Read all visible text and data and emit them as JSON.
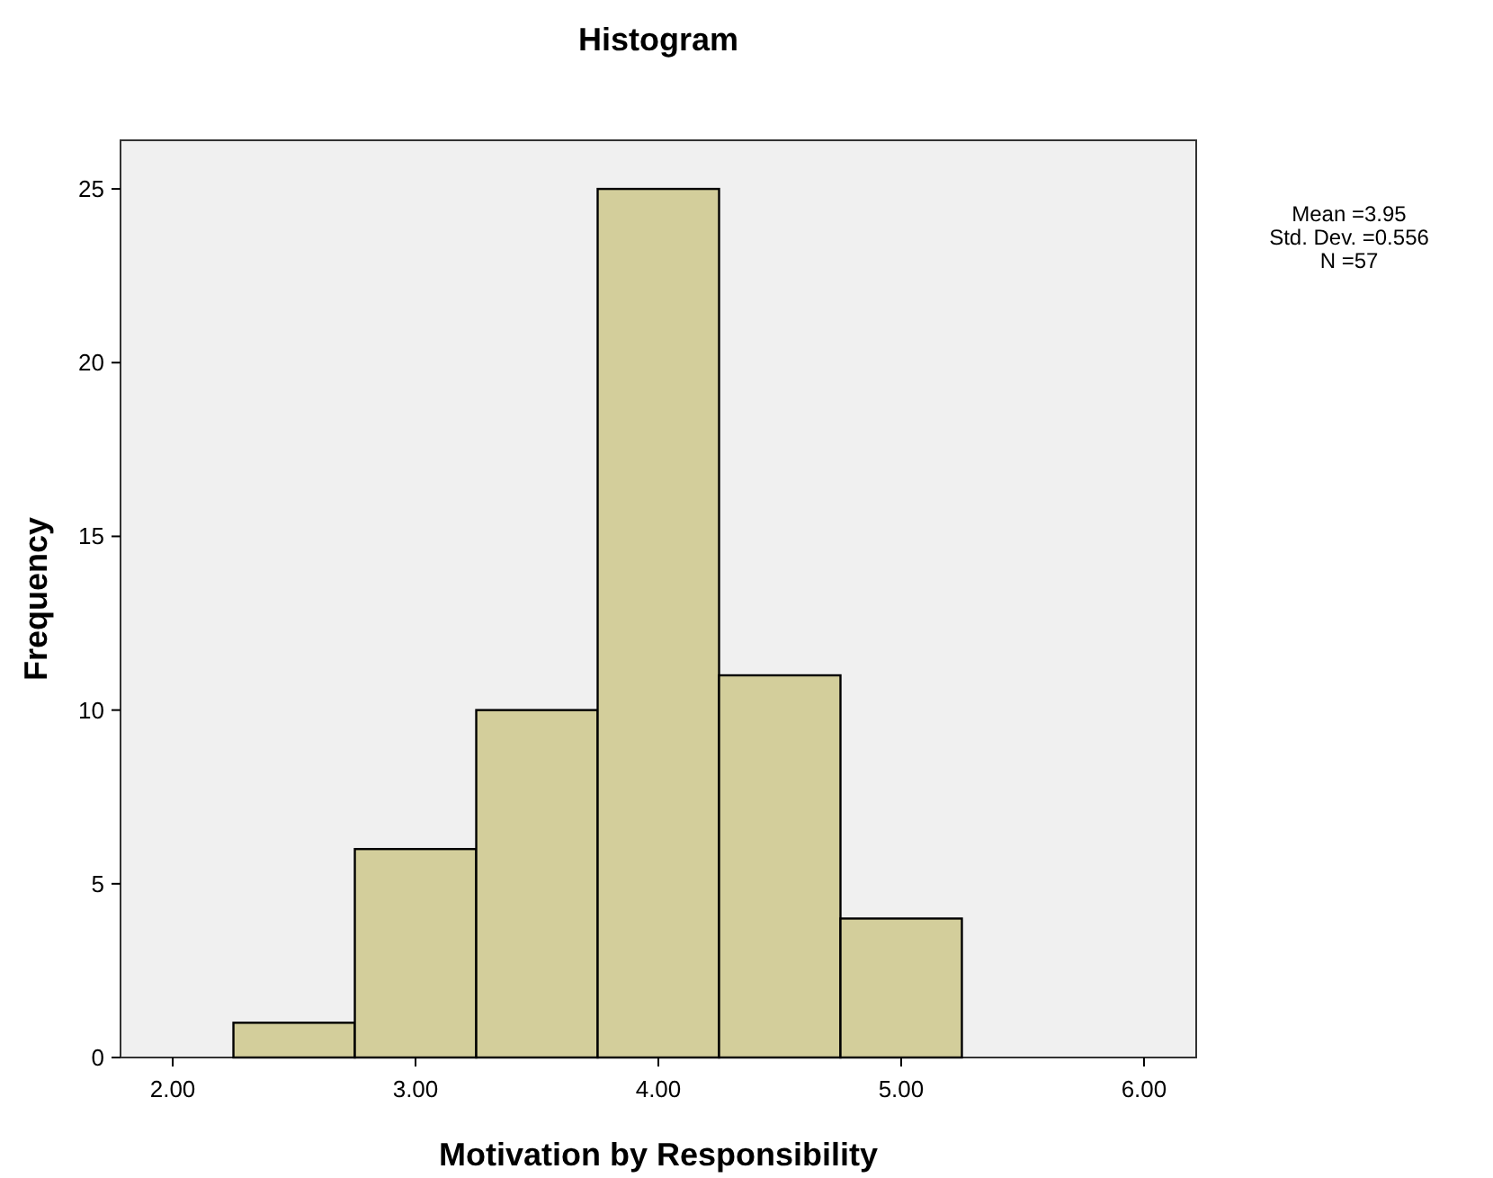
{
  "chart_data": {
    "type": "histogram",
    "title": "Histogram",
    "xlabel": "Motivation by Responsibility",
    "ylabel": "Frequency",
    "bins": [
      2.25,
      2.75,
      3.25,
      3.75,
      4.25,
      4.75,
      5.25
    ],
    "values": [
      1,
      6,
      10,
      25,
      11,
      4
    ],
    "color": "#d3ce9b",
    "xlim": [
      1.785,
      6.215
    ],
    "xticks": [
      {
        "value": 2,
        "label": "2.00"
      },
      {
        "value": 3,
        "label": "3.00"
      },
      {
        "value": 4,
        "label": "4.00"
      },
      {
        "value": 5,
        "label": "5.00"
      },
      {
        "value": 6,
        "label": "6.00"
      }
    ],
    "ylim": [
      0,
      26.4
    ],
    "yticks": [
      0,
      5,
      10,
      15,
      20,
      25
    ],
    "annotations": [
      "Mean =3.95",
      "Std. Dev. =0.556",
      "N =57"
    ]
  }
}
